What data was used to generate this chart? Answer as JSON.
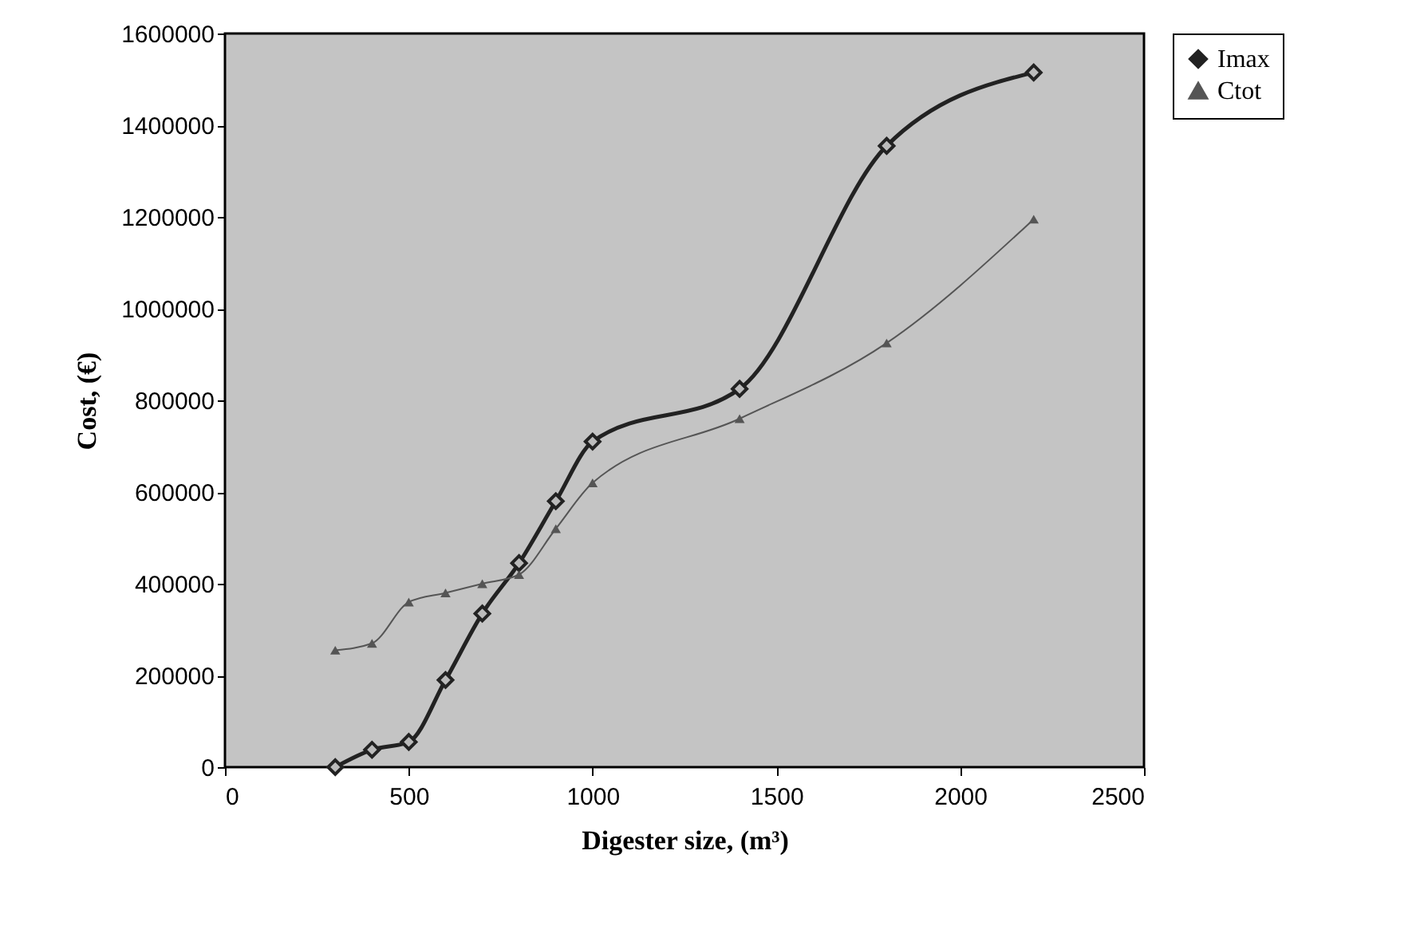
{
  "chart_data": {
    "type": "line",
    "xlabel": "Digester size, (m³)",
    "ylabel": "Cost, (€)",
    "xlim": [
      0,
      2500
    ],
    "xticks": [
      0,
      500,
      1000,
      1500,
      2000,
      2500
    ],
    "ylim": [
      0,
      1600000
    ],
    "yticks": [
      0,
      200000,
      400000,
      600000,
      800000,
      1000000,
      1200000,
      1400000,
      1600000
    ],
    "x": [
      300,
      400,
      500,
      600,
      700,
      800,
      900,
      1000,
      1400,
      1800,
      2200
    ],
    "series": [
      {
        "name": "Imax",
        "color": "#222222",
        "marker": "diamond",
        "values": [
          0,
          38000,
          55000,
          190000,
          335000,
          445000,
          580000,
          710000,
          825000,
          1355000,
          1515000
        ]
      },
      {
        "name": "Ctot",
        "color": "#555555",
        "marker": "triangle",
        "values": [
          255000,
          270000,
          360000,
          380000,
          400000,
          420000,
          520000,
          620000,
          760000,
          925000,
          1195000
        ]
      }
    ],
    "grid": false,
    "legend": "right"
  }
}
